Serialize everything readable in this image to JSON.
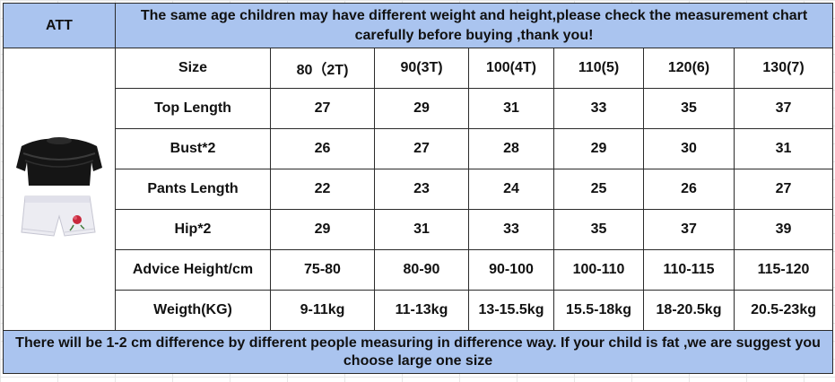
{
  "header": {
    "brand": "ATT",
    "notice": "The same age children may have different weight and height,please check the measurement chart carefully before buying ,thank you!"
  },
  "product_image": {
    "items": [
      "black-lace-top-icon",
      "white-shorts-icon"
    ],
    "colors": {
      "top": "#151515",
      "shorts": "#ececf2",
      "rose": "#c8283c"
    }
  },
  "size_chart": {
    "size_label": "Size",
    "sizes": [
      "80（2T)",
      "90(3T)",
      "100(4T)",
      "110(5)",
      "120(6)",
      "130(7)"
    ],
    "rows": [
      {
        "label": "Top Length",
        "values": [
          "27",
          "29",
          "31",
          "33",
          "35",
          "37"
        ]
      },
      {
        "label": "Bust*2",
        "values": [
          "26",
          "27",
          "28",
          "29",
          "30",
          "31"
        ]
      },
      {
        "label": "Pants Length",
        "values": [
          "22",
          "23",
          "24",
          "25",
          "26",
          "27"
        ]
      },
      {
        "label": "Hip*2",
        "values": [
          "29",
          "31",
          "33",
          "35",
          "37",
          "39"
        ]
      },
      {
        "label": "Advice Height/cm",
        "values": [
          "75-80",
          "80-90",
          "90-100",
          "100-110",
          "110-115",
          "115-120"
        ]
      },
      {
        "label": "Weigth(KG)",
        "values": [
          "9-11kg",
          "11-13kg",
          "13-15.5kg",
          "15.5-18kg",
          "18-20.5kg",
          "20.5-23kg"
        ]
      }
    ]
  },
  "footer": {
    "notice": "There will be 1-2 cm difference by different people measuring in difference way. If your child is fat ,we are suggest you choose large one size"
  },
  "colors": {
    "banner_bg": "#aac4ef",
    "notice_text": "#e21b1b",
    "grid_line": "#2b2b2b"
  }
}
